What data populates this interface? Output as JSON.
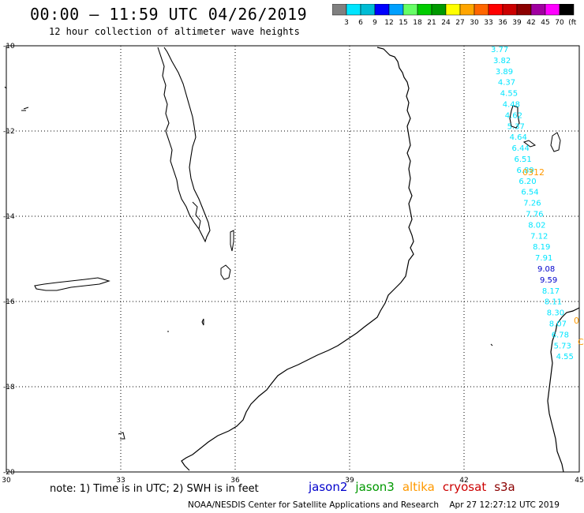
{
  "title": "00:00 – 11:59 UTC 04/26/2019",
  "subtitle": "12 hour collection of altimeter wave heights",
  "colorbar": {
    "labels": [
      "3",
      "6",
      "9",
      "12",
      "15",
      "18",
      "21",
      "24",
      "27",
      "30",
      "33",
      "36",
      "39",
      "42",
      "45",
      "70",
      "(ft)"
    ],
    "colors": [
      "#808080",
      "#00e5ff",
      "#00bcd4",
      "#0000ff",
      "#00a0ff",
      "#66ff66",
      "#00cc00",
      "#009900",
      "#ffff00",
      "#ffa500",
      "#ff6600",
      "#ff0000",
      "#cc0000",
      "#8b0000",
      "#a000a0",
      "#ff00ff",
      "#000000"
    ]
  },
  "axes": {
    "lat_labels": [
      "-10",
      "-12",
      "-14",
      "-16",
      "-18",
      "-20"
    ],
    "lon_labels": [
      "30",
      "33",
      "36",
      "39",
      "42",
      "45"
    ]
  },
  "swh_values": [
    {
      "text": "3.77",
      "color": "#00e5ff"
    },
    {
      "text": "3.82",
      "color": "#00e5ff"
    },
    {
      "text": "3.89",
      "color": "#00e5ff"
    },
    {
      "text": "4.37",
      "color": "#00e5ff"
    },
    {
      "text": "4.55",
      "color": "#00e5ff"
    },
    {
      "text": "4.48",
      "color": "#00e5ff"
    },
    {
      "text": "4.62",
      "color": "#00e5ff"
    },
    {
      "text": "5.37",
      "color": "#00e5ff"
    },
    {
      "text": "4.64",
      "color": "#00e5ff"
    },
    {
      "text": "6.44",
      "color": "#00e5ff"
    },
    {
      "text": "6.51",
      "color": "#00e5ff"
    },
    {
      "text": "6.89",
      "color": "#00e5ff"
    },
    {
      "text": "6.20",
      "color": "#00e5ff"
    },
    {
      "text": "6.54",
      "color": "#00e5ff"
    },
    {
      "text": "7.26",
      "color": "#00e5ff"
    },
    {
      "text": "7.76",
      "color": "#00e5ff"
    },
    {
      "text": "8.02",
      "color": "#00e5ff"
    },
    {
      "text": "7.12",
      "color": "#00e5ff"
    },
    {
      "text": "8.19",
      "color": "#00e5ff"
    },
    {
      "text": "7.91",
      "color": "#00e5ff"
    },
    {
      "text": "9.08",
      "color": "#0000cc"
    },
    {
      "text": "9.59",
      "color": "#0000cc"
    },
    {
      "text": "8.17",
      "color": "#00e5ff"
    },
    {
      "text": "8.11",
      "color": "#00e5ff"
    },
    {
      "text": "8.30",
      "color": "#00e5ff"
    },
    {
      "text": "8.07",
      "color": "#00e5ff"
    },
    {
      "text": "6.78",
      "color": "#00e5ff"
    },
    {
      "text": "5.73",
      "color": "#00e5ff"
    },
    {
      "text": "4.55",
      "color": "#00e5ff"
    }
  ],
  "orbit_times": [
    {
      "text": "0312",
      "color": "#ff9900"
    },
    {
      "text": "0",
      "color": "#ff9900"
    },
    {
      "text": "C",
      "color": "#ff9900"
    }
  ],
  "note": "note: 1) Time is in UTC; 2) SWH is in feet",
  "satellites": [
    {
      "name": "jason2",
      "color": "#0000cc"
    },
    {
      "name": "jason3",
      "color": "#009900"
    },
    {
      "name": "altika",
      "color": "#ff9900"
    },
    {
      "name": "cryosat",
      "color": "#cc0000"
    },
    {
      "name": "s3a",
      "color": "#8b0000"
    }
  ],
  "credit": "NOAA/NESDIS Center for Satellite Applications and Research    Apr 27 12:27:12 UTC 2019"
}
